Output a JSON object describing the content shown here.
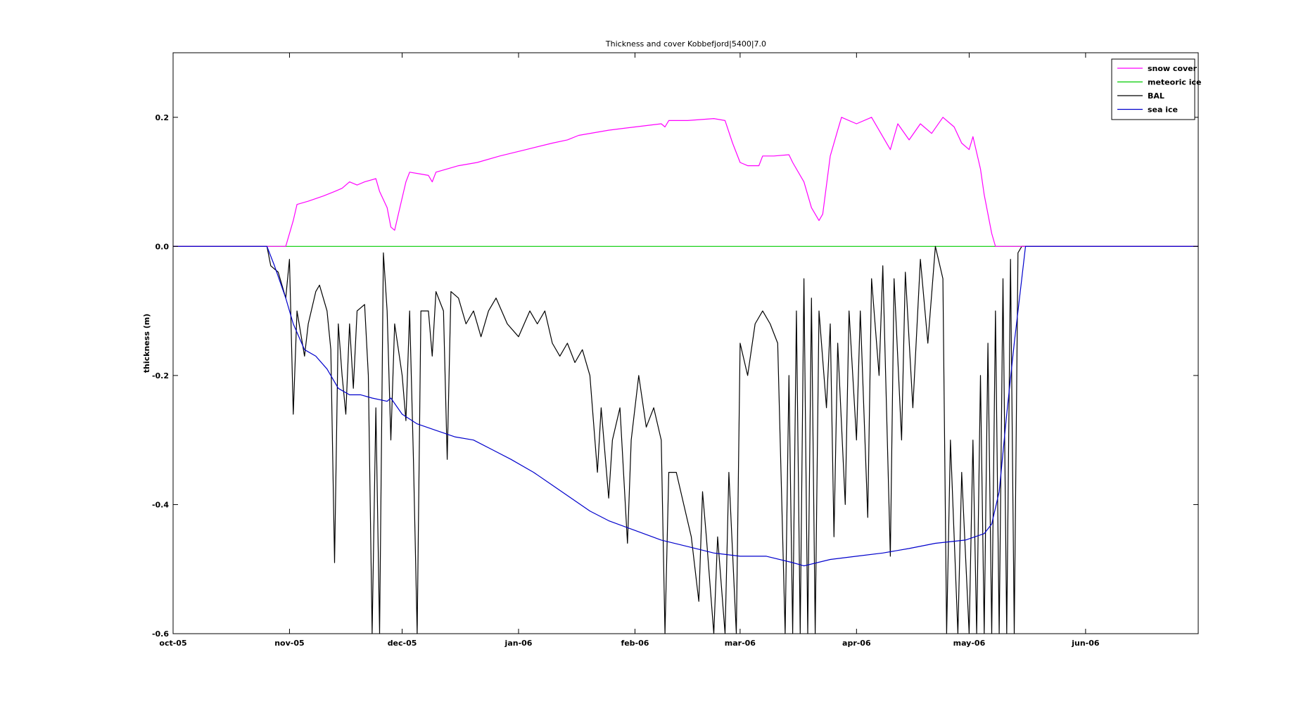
{
  "chart_data": {
    "type": "line",
    "title": "Thickness and cover Kobbefjord|5400|7.0",
    "xlabel": "",
    "ylabel": "thickness (m)",
    "ylim": [
      -0.6,
      0.3
    ],
    "xlim": [
      "2005-10-01",
      "2006-07-01"
    ],
    "grid": false,
    "legend_position": "top-right",
    "x_ticks": [
      {
        "date": "2005-10-01",
        "label": "oct-05"
      },
      {
        "date": "2005-11-01",
        "label": "nov-05"
      },
      {
        "date": "2005-12-01",
        "label": "dec-05"
      },
      {
        "date": "2006-01-01",
        "label": "jan-06"
      },
      {
        "date": "2006-02-01",
        "label": "feb-06"
      },
      {
        "date": "2006-03-01",
        "label": "mar-06"
      },
      {
        "date": "2006-04-01",
        "label": "apr-06"
      },
      {
        "date": "2006-05-01",
        "label": "may-06"
      },
      {
        "date": "2006-06-01",
        "label": "jun-06"
      }
    ],
    "y_ticks": [
      {
        "value": -0.6,
        "label": "-0.6"
      },
      {
        "value": -0.4,
        "label": "-0.4"
      },
      {
        "value": -0.2,
        "label": "-0.2"
      },
      {
        "value": 0.0,
        "label": "0.0"
      },
      {
        "value": 0.2,
        "label": "0.2"
      }
    ],
    "series": [
      {
        "name": "snow cover",
        "color": "#ff00ff",
        "points": [
          [
            "2005-10-01",
            0.0
          ],
          [
            "2005-10-31",
            0.0
          ],
          [
            "2005-11-02",
            0.04
          ],
          [
            "2005-11-03",
            0.065
          ],
          [
            "2005-11-06",
            0.07
          ],
          [
            "2005-11-10",
            0.078
          ],
          [
            "2005-11-13",
            0.085
          ],
          [
            "2005-11-15",
            0.09
          ],
          [
            "2005-11-17",
            0.1
          ],
          [
            "2005-11-19",
            0.095
          ],
          [
            "2005-11-21",
            0.1
          ],
          [
            "2005-11-24",
            0.105
          ],
          [
            "2005-11-25",
            0.085
          ],
          [
            "2005-11-27",
            0.06
          ],
          [
            "2005-11-28",
            0.03
          ],
          [
            "2005-11-29",
            0.025
          ],
          [
            "2005-11-30",
            0.05
          ],
          [
            "2005-12-02",
            0.1
          ],
          [
            "2005-12-03",
            0.115
          ],
          [
            "2005-12-06",
            0.112
          ],
          [
            "2005-12-08",
            0.11
          ],
          [
            "2005-12-09",
            0.1
          ],
          [
            "2005-12-10",
            0.115
          ],
          [
            "2005-12-13",
            0.12
          ],
          [
            "2005-12-16",
            0.125
          ],
          [
            "2005-12-21",
            0.13
          ],
          [
            "2005-12-27",
            0.14
          ],
          [
            "2006-01-03",
            0.15
          ],
          [
            "2006-01-10",
            0.16
          ],
          [
            "2006-01-14",
            0.165
          ],
          [
            "2006-01-17",
            0.172
          ],
          [
            "2006-01-25",
            0.18
          ],
          [
            "2006-02-01",
            0.185
          ],
          [
            "2006-02-08",
            0.19
          ],
          [
            "2006-02-09",
            0.185
          ],
          [
            "2006-02-10",
            0.195
          ],
          [
            "2006-02-15",
            0.195
          ],
          [
            "2006-02-22",
            0.198
          ],
          [
            "2006-02-25",
            0.195
          ],
          [
            "2006-02-27",
            0.16
          ],
          [
            "2006-03-01",
            0.13
          ],
          [
            "2006-03-03",
            0.125
          ],
          [
            "2006-03-06",
            0.125
          ],
          [
            "2006-03-07",
            0.14
          ],
          [
            "2006-03-10",
            0.14
          ],
          [
            "2006-03-14",
            0.142
          ],
          [
            "2006-03-15",
            0.13
          ],
          [
            "2006-03-18",
            0.1
          ],
          [
            "2006-03-20",
            0.06
          ],
          [
            "2006-03-22",
            0.04
          ],
          [
            "2006-03-23",
            0.05
          ],
          [
            "2006-03-25",
            0.14
          ],
          [
            "2006-03-27",
            0.18
          ],
          [
            "2006-03-28",
            0.2
          ],
          [
            "2006-04-01",
            0.19
          ],
          [
            "2006-04-05",
            0.2
          ],
          [
            "2006-04-08",
            0.17
          ],
          [
            "2006-04-10",
            0.15
          ],
          [
            "2006-04-12",
            0.19
          ],
          [
            "2006-04-15",
            0.165
          ],
          [
            "2006-04-18",
            0.19
          ],
          [
            "2006-04-21",
            0.175
          ],
          [
            "2006-04-24",
            0.2
          ],
          [
            "2006-04-27",
            0.185
          ],
          [
            "2006-04-29",
            0.16
          ],
          [
            "2006-05-01",
            0.15
          ],
          [
            "2006-05-02",
            0.17
          ],
          [
            "2006-05-04",
            0.12
          ],
          [
            "2006-05-05",
            0.08
          ],
          [
            "2006-05-07",
            0.02
          ],
          [
            "2006-05-08",
            0.0
          ],
          [
            "2006-07-01",
            0.0
          ]
        ]
      },
      {
        "name": "meteoric ice",
        "color": "#00cc00",
        "points": [
          [
            "2005-10-01",
            0.0
          ],
          [
            "2006-07-01",
            0.0
          ]
        ]
      },
      {
        "name": "BAL",
        "color": "#000000",
        "points": [
          [
            "2005-10-01",
            0.0
          ],
          [
            "2005-10-26",
            0.0
          ],
          [
            "2005-10-27",
            -0.03
          ],
          [
            "2005-10-29",
            -0.04
          ],
          [
            "2005-10-31",
            -0.08
          ],
          [
            "2005-11-01",
            -0.02
          ],
          [
            "2005-11-02",
            -0.26
          ],
          [
            "2005-11-03",
            -0.1
          ],
          [
            "2005-11-05",
            -0.17
          ],
          [
            "2005-11-06",
            -0.12
          ],
          [
            "2005-11-08",
            -0.07
          ],
          [
            "2005-11-09",
            -0.06
          ],
          [
            "2005-11-11",
            -0.1
          ],
          [
            "2005-11-12",
            -0.16
          ],
          [
            "2005-11-13",
            -0.49
          ],
          [
            "2005-11-14",
            -0.12
          ],
          [
            "2005-11-15",
            -0.2
          ],
          [
            "2005-11-16",
            -0.26
          ],
          [
            "2005-11-17",
            -0.12
          ],
          [
            "2005-11-18",
            -0.22
          ],
          [
            "2005-11-19",
            -0.1
          ],
          [
            "2005-11-21",
            -0.09
          ],
          [
            "2005-11-22",
            -0.2
          ],
          [
            "2005-11-23",
            -0.6
          ],
          [
            "2005-11-24",
            -0.25
          ],
          [
            "2005-11-25",
            -0.6
          ],
          [
            "2005-11-26",
            -0.01
          ],
          [
            "2005-11-27",
            -0.1
          ],
          [
            "2005-11-28",
            -0.3
          ],
          [
            "2005-11-29",
            -0.12
          ],
          [
            "2005-12-01",
            -0.2
          ],
          [
            "2005-12-02",
            -0.27
          ],
          [
            "2005-12-03",
            -0.1
          ],
          [
            "2005-12-04",
            -0.33
          ],
          [
            "2005-12-05",
            -0.6
          ],
          [
            "2005-12-06",
            -0.1
          ],
          [
            "2005-12-08",
            -0.1
          ],
          [
            "2005-12-09",
            -0.17
          ],
          [
            "2005-12-10",
            -0.07
          ],
          [
            "2005-12-12",
            -0.1
          ],
          [
            "2005-12-13",
            -0.33
          ],
          [
            "2005-12-14",
            -0.07
          ],
          [
            "2005-12-16",
            -0.08
          ],
          [
            "2005-12-18",
            -0.12
          ],
          [
            "2005-12-20",
            -0.1
          ],
          [
            "2005-12-22",
            -0.14
          ],
          [
            "2005-12-24",
            -0.1
          ],
          [
            "2005-12-26",
            -0.08
          ],
          [
            "2005-12-29",
            -0.12
          ],
          [
            "2006-01-01",
            -0.14
          ],
          [
            "2006-01-04",
            -0.1
          ],
          [
            "2006-01-06",
            -0.12
          ],
          [
            "2006-01-08",
            -0.1
          ],
          [
            "2006-01-10",
            -0.15
          ],
          [
            "2006-01-12",
            -0.17
          ],
          [
            "2006-01-14",
            -0.15
          ],
          [
            "2006-01-16",
            -0.18
          ],
          [
            "2006-01-18",
            -0.16
          ],
          [
            "2006-01-20",
            -0.2
          ],
          [
            "2006-01-22",
            -0.35
          ],
          [
            "2006-01-23",
            -0.25
          ],
          [
            "2006-01-25",
            -0.39
          ],
          [
            "2006-01-26",
            -0.3
          ],
          [
            "2006-01-28",
            -0.25
          ],
          [
            "2006-01-30",
            -0.46
          ],
          [
            "2006-01-31",
            -0.3
          ],
          [
            "2006-02-02",
            -0.2
          ],
          [
            "2006-02-04",
            -0.28
          ],
          [
            "2006-02-06",
            -0.25
          ],
          [
            "2006-02-08",
            -0.3
          ],
          [
            "2006-02-09",
            -0.6
          ],
          [
            "2006-02-10",
            -0.35
          ],
          [
            "2006-02-12",
            -0.35
          ],
          [
            "2006-02-14",
            -0.4
          ],
          [
            "2006-02-16",
            -0.45
          ],
          [
            "2006-02-18",
            -0.55
          ],
          [
            "2006-02-19",
            -0.38
          ],
          [
            "2006-02-20",
            -0.45
          ],
          [
            "2006-02-22",
            -0.6
          ],
          [
            "2006-02-23",
            -0.45
          ],
          [
            "2006-02-25",
            -0.6
          ],
          [
            "2006-02-26",
            -0.35
          ],
          [
            "2006-02-28",
            -0.6
          ],
          [
            "2006-03-01",
            -0.15
          ],
          [
            "2006-03-03",
            -0.2
          ],
          [
            "2006-03-05",
            -0.12
          ],
          [
            "2006-03-07",
            -0.1
          ],
          [
            "2006-03-09",
            -0.12
          ],
          [
            "2006-03-11",
            -0.15
          ],
          [
            "2006-03-13",
            -0.6
          ],
          [
            "2006-03-14",
            -0.2
          ],
          [
            "2006-03-15",
            -0.6
          ],
          [
            "2006-03-16",
            -0.1
          ],
          [
            "2006-03-17",
            -0.6
          ],
          [
            "2006-03-18",
            -0.05
          ],
          [
            "2006-03-19",
            -0.6
          ],
          [
            "2006-03-20",
            -0.08
          ],
          [
            "2006-03-21",
            -0.6
          ],
          [
            "2006-03-22",
            -0.1
          ],
          [
            "2006-03-24",
            -0.25
          ],
          [
            "2006-03-25",
            -0.12
          ],
          [
            "2006-03-26",
            -0.45
          ],
          [
            "2006-03-27",
            -0.15
          ],
          [
            "2006-03-29",
            -0.4
          ],
          [
            "2006-03-30",
            -0.1
          ],
          [
            "2006-04-01",
            -0.3
          ],
          [
            "2006-04-02",
            -0.1
          ],
          [
            "2006-04-04",
            -0.42
          ],
          [
            "2006-04-05",
            -0.05
          ],
          [
            "2006-04-07",
            -0.2
          ],
          [
            "2006-04-08",
            -0.03
          ],
          [
            "2006-04-10",
            -0.48
          ],
          [
            "2006-04-11",
            -0.05
          ],
          [
            "2006-04-13",
            -0.3
          ],
          [
            "2006-04-14",
            -0.04
          ],
          [
            "2006-04-16",
            -0.25
          ],
          [
            "2006-04-18",
            -0.02
          ],
          [
            "2006-04-20",
            -0.15
          ],
          [
            "2006-04-22",
            0.0
          ],
          [
            "2006-04-24",
            -0.05
          ],
          [
            "2006-04-25",
            -0.6
          ],
          [
            "2006-04-26",
            -0.3
          ],
          [
            "2006-04-28",
            -0.6
          ],
          [
            "2006-04-29",
            -0.35
          ],
          [
            "2006-05-01",
            -0.6
          ],
          [
            "2006-05-02",
            -0.3
          ],
          [
            "2006-05-03",
            -0.6
          ],
          [
            "2006-05-04",
            -0.2
          ],
          [
            "2006-05-05",
            -0.6
          ],
          [
            "2006-05-06",
            -0.15
          ],
          [
            "2006-05-07",
            -0.6
          ],
          [
            "2006-05-08",
            -0.1
          ],
          [
            "2006-05-09",
            -0.6
          ],
          [
            "2006-05-10",
            -0.05
          ],
          [
            "2006-05-11",
            -0.6
          ],
          [
            "2006-05-12",
            -0.02
          ],
          [
            "2006-05-13",
            -0.6
          ],
          [
            "2006-05-14",
            -0.01
          ],
          [
            "2006-05-15",
            0.0
          ],
          [
            "2006-07-01",
            0.0
          ]
        ]
      },
      {
        "name": "sea ice",
        "color": "#0000cc",
        "points": [
          [
            "2005-10-01",
            0.0
          ],
          [
            "2005-10-26",
            0.0
          ],
          [
            "2005-10-28",
            -0.03
          ],
          [
            "2005-10-31",
            -0.08
          ],
          [
            "2005-11-02",
            -0.12
          ],
          [
            "2005-11-05",
            -0.16
          ],
          [
            "2005-11-08",
            -0.17
          ],
          [
            "2005-11-11",
            -0.19
          ],
          [
            "2005-11-14",
            -0.22
          ],
          [
            "2005-11-17",
            -0.23
          ],
          [
            "2005-11-20",
            -0.23
          ],
          [
            "2005-11-23",
            -0.235
          ],
          [
            "2005-11-27",
            -0.24
          ],
          [
            "2005-11-28",
            -0.235
          ],
          [
            "2005-12-01",
            -0.26
          ],
          [
            "2005-12-05",
            -0.275
          ],
          [
            "2005-12-10",
            -0.285
          ],
          [
            "2005-12-15",
            -0.295
          ],
          [
            "2005-12-20",
            -0.3
          ],
          [
            "2005-12-25",
            -0.315
          ],
          [
            "2005-12-30",
            -0.33
          ],
          [
            "2006-01-05",
            -0.35
          ],
          [
            "2006-01-10",
            -0.37
          ],
          [
            "2006-01-15",
            -0.39
          ],
          [
            "2006-01-20",
            -0.41
          ],
          [
            "2006-01-25",
            -0.425
          ],
          [
            "2006-02-01",
            -0.44
          ],
          [
            "2006-02-08",
            -0.455
          ],
          [
            "2006-02-15",
            -0.465
          ],
          [
            "2006-02-22",
            -0.475
          ],
          [
            "2006-03-01",
            -0.48
          ],
          [
            "2006-03-08",
            -0.48
          ],
          [
            "2006-03-15",
            -0.49
          ],
          [
            "2006-03-18",
            -0.495
          ],
          [
            "2006-03-25",
            -0.485
          ],
          [
            "2006-04-01",
            -0.48
          ],
          [
            "2006-04-08",
            -0.475
          ],
          [
            "2006-04-15",
            -0.468
          ],
          [
            "2006-04-22",
            -0.46
          ],
          [
            "2006-04-30",
            -0.455
          ],
          [
            "2006-05-05",
            -0.445
          ],
          [
            "2006-05-07",
            -0.43
          ],
          [
            "2006-05-09",
            -0.38
          ],
          [
            "2006-05-11",
            -0.26
          ],
          [
            "2006-05-13",
            -0.15
          ],
          [
            "2006-05-15",
            -0.05
          ],
          [
            "2006-05-16",
            0.0
          ],
          [
            "2006-07-01",
            0.0
          ]
        ]
      }
    ]
  }
}
